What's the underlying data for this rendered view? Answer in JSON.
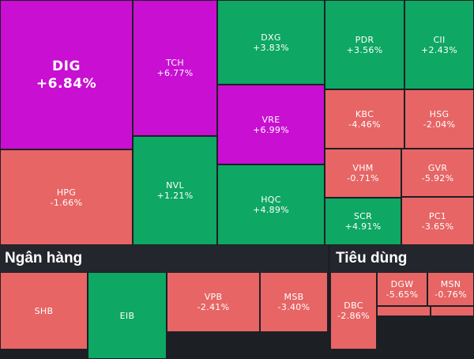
{
  "sections": {
    "banking": {
      "title": "Ngân hàng"
    },
    "consumer": {
      "title": "Tiêu dùng"
    }
  },
  "colors": {
    "ceiling": "#c80fd2",
    "up": "#0ea763",
    "down": "#e76565",
    "background": "#1c1f24",
    "header_bg": "#23272d"
  },
  "tiles": {
    "dig": {
      "symbol": "DIG",
      "change": "+6.84%"
    },
    "tch": {
      "symbol": "TCH",
      "change": "+6.77%"
    },
    "dxg": {
      "symbol": "DXG",
      "change": "+3.83%"
    },
    "pdr": {
      "symbol": "PDR",
      "change": "+3.56%"
    },
    "cii": {
      "symbol": "CII",
      "change": "+2.43%"
    },
    "vre": {
      "symbol": "VRE",
      "change": "+6.99%"
    },
    "kbc": {
      "symbol": "KBC",
      "change": "-4.46%"
    },
    "hsg": {
      "symbol": "HSG",
      "change": "-2.04%"
    },
    "hpg": {
      "symbol": "HPG",
      "change": "-1.66%"
    },
    "nvl": {
      "symbol": "NVL",
      "change": "+1.21%"
    },
    "hqc": {
      "symbol": "HQC",
      "change": "+4.89%"
    },
    "vhm": {
      "symbol": "VHM",
      "change": "-0.71%"
    },
    "gvr": {
      "symbol": "GVR",
      "change": "-5.92%"
    },
    "scr": {
      "symbol": "SCR",
      "change": "+4.91%"
    },
    "pc1": {
      "symbol": "PC1",
      "change": "-3.65%"
    },
    "shb": {
      "symbol": "SHB",
      "change": ""
    },
    "eib": {
      "symbol": "EIB",
      "change": ""
    },
    "vpb": {
      "symbol": "VPB",
      "change": "-2.41%"
    },
    "msb": {
      "symbol": "MSB",
      "change": "-3.40%"
    },
    "dbc": {
      "symbol": "DBC",
      "change": "-2.86%"
    },
    "dgw": {
      "symbol": "DGW",
      "change": "-5.65%"
    },
    "msn": {
      "symbol": "MSN",
      "change": "-0.76%"
    }
  }
}
